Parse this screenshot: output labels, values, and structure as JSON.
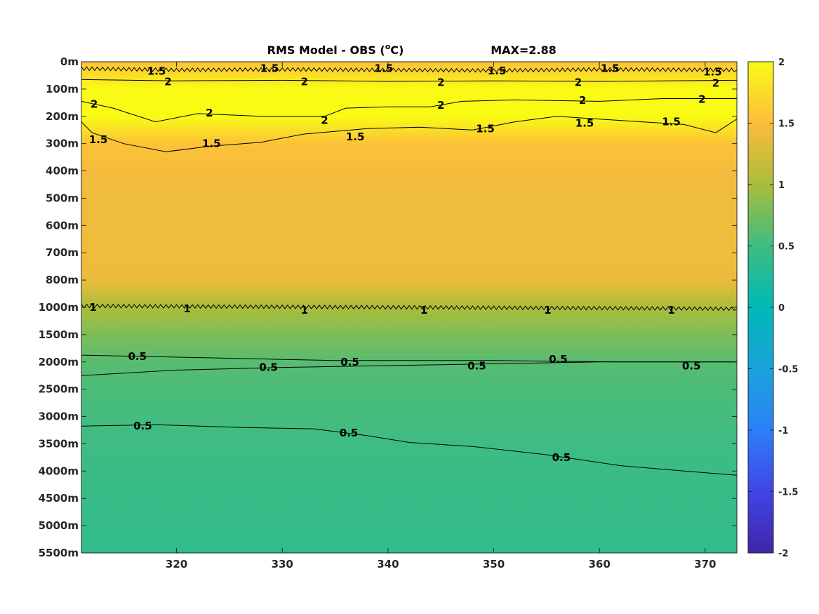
{
  "chart_data": {
    "type": "heatmap",
    "title": "RMS Model - OBS (",
    "title_sup": "o",
    "title_unit": "C)",
    "annotation": "MAX=2.88",
    "xlim": [
      311,
      373
    ],
    "xticks": [
      320,
      330,
      340,
      350,
      360,
      370
    ],
    "ytick_labels": [
      "0m",
      "100m",
      "200m",
      "300m",
      "400m",
      "500m",
      "600m",
      "700m",
      "800m",
      "1000m",
      "1500m",
      "2000m",
      "2500m",
      "3000m",
      "3500m",
      "4000m",
      "4500m",
      "5000m",
      "5500m"
    ],
    "colorbar": {
      "clim": [
        -2,
        2
      ],
      "ticks": [
        "2",
        "1.5",
        "1",
        "0.5",
        "0",
        "-0.5",
        "-1",
        "-1.5",
        "-2"
      ],
      "colormap": "parula"
    },
    "depth_rms_profile": [
      1.55,
      2.05,
      2.0,
      1.55,
      1.45,
      1.42,
      1.42,
      1.42,
      1.4,
      1.0,
      0.8,
      0.62,
      0.56,
      0.53,
      0.5,
      0.47,
      0.45,
      0.42,
      0.4
    ],
    "contour_levels": [
      0.5,
      1,
      1.5,
      2
    ],
    "contour_labels": [
      {
        "text": "1.5",
        "x": 318.1,
        "y": 0.35
      },
      {
        "text": "1.5",
        "x": 328.8,
        "y": 0.25
      },
      {
        "text": "1.5",
        "x": 339.6,
        "y": 0.25
      },
      {
        "text": "1.5",
        "x": 350.3,
        "y": 0.33
      },
      {
        "text": "1.5",
        "x": 361.0,
        "y": 0.25
      },
      {
        "text": "1.5",
        "x": 370.7,
        "y": 0.37
      },
      {
        "text": "2",
        "x": 319.2,
        "y": 0.73
      },
      {
        "text": "2",
        "x": 332.1,
        "y": 0.73
      },
      {
        "text": "2",
        "x": 345.0,
        "y": 0.76
      },
      {
        "text": "2",
        "x": 358.0,
        "y": 0.76
      },
      {
        "text": "2",
        "x": 371.0,
        "y": 0.78
      },
      {
        "text": "2",
        "x": 312.2,
        "y": 1.55
      },
      {
        "text": "2",
        "x": 323.1,
        "y": 1.88
      },
      {
        "text": "2",
        "x": 345.0,
        "y": 1.6
      },
      {
        "text": "2",
        "x": 358.4,
        "y": 1.42
      },
      {
        "text": "2",
        "x": 369.7,
        "y": 1.38
      },
      {
        "text": "2",
        "x": 334.0,
        "y": 2.15
      },
      {
        "text": "1.5",
        "x": 312.6,
        "y": 2.85
      },
      {
        "text": "1.5",
        "x": 323.3,
        "y": 3.0
      },
      {
        "text": "1.5",
        "x": 336.9,
        "y": 2.75
      },
      {
        "text": "1.5",
        "x": 349.2,
        "y": 2.45
      },
      {
        "text": "1.5",
        "x": 358.6,
        "y": 2.25
      },
      {
        "text": "1.5",
        "x": 366.8,
        "y": 2.2
      },
      {
        "text": "1",
        "x": 312.1,
        "y": 9.0
      },
      {
        "text": "1",
        "x": 321.0,
        "y": 9.05
      },
      {
        "text": "1",
        "x": 332.1,
        "y": 9.1
      },
      {
        "text": "1",
        "x": 343.4,
        "y": 9.1
      },
      {
        "text": "1",
        "x": 355.1,
        "y": 9.1
      },
      {
        "text": "1",
        "x": 366.8,
        "y": 9.1
      },
      {
        "text": "0.5",
        "x": 316.3,
        "y": 10.8
      },
      {
        "text": "0.5",
        "x": 328.7,
        "y": 11.2
      },
      {
        "text": "0.5",
        "x": 336.4,
        "y": 11.0
      },
      {
        "text": "0.5",
        "x": 348.4,
        "y": 11.15
      },
      {
        "text": "0.5",
        "x": 356.1,
        "y": 10.9
      },
      {
        "text": "0.5",
        "x": 368.7,
        "y": 11.15
      },
      {
        "text": "0.5",
        "x": 316.8,
        "y": 13.35
      },
      {
        "text": "0.5",
        "x": 336.3,
        "y": 13.6
      },
      {
        "text": "0.5",
        "x": 356.4,
        "y": 14.5
      }
    ],
    "contour_lines": [
      {
        "level": 1.5,
        "points": [
          [
            311,
            0.25
          ],
          [
            320,
            0.3
          ],
          [
            330,
            0.28
          ],
          [
            340,
            0.3
          ],
          [
            350,
            0.32
          ],
          [
            360,
            0.28
          ],
          [
            373,
            0.3
          ]
        ],
        "wiggle": true
      },
      {
        "level": 2,
        "points": [
          [
            311,
            0.65
          ],
          [
            320,
            0.7
          ],
          [
            330,
            0.68
          ],
          [
            340,
            0.72
          ],
          [
            350,
            0.7
          ],
          [
            360,
            0.72
          ],
          [
            373,
            0.68
          ]
        ],
        "wiggle": false
      },
      {
        "level": 2,
        "points": [
          [
            311,
            1.45
          ],
          [
            314,
            1.7
          ],
          [
            318,
            2.2
          ],
          [
            322,
            1.9
          ],
          [
            328,
            2.0
          ],
          [
            334,
            2.0
          ],
          [
            336,
            1.7
          ],
          [
            340,
            1.65
          ],
          [
            344,
            1.65
          ],
          [
            347,
            1.45
          ],
          [
            352,
            1.4
          ],
          [
            360,
            1.45
          ],
          [
            366,
            1.35
          ],
          [
            373,
            1.35
          ]
        ],
        "wiggle": false
      },
      {
        "level": 1.5,
        "points": [
          [
            311,
            2.2
          ],
          [
            312,
            2.6
          ],
          [
            315,
            3.0
          ],
          [
            319,
            3.3
          ],
          [
            323,
            3.1
          ],
          [
            328,
            2.95
          ],
          [
            332,
            2.65
          ],
          [
            338,
            2.45
          ],
          [
            343,
            2.4
          ],
          [
            348,
            2.5
          ],
          [
            352,
            2.2
          ],
          [
            356,
            2.0
          ],
          [
            360,
            2.1
          ],
          [
            364,
            2.2
          ],
          [
            368,
            2.3
          ],
          [
            371,
            2.6
          ],
          [
            373,
            2.1
          ]
        ],
        "wiggle": false
      },
      {
        "level": 1,
        "points": [
          [
            311,
            8.95
          ],
          [
            373,
            9.05
          ]
        ],
        "wiggle": true
      },
      {
        "level": 0.5,
        "points": [
          [
            311,
            10.75
          ],
          [
            323,
            10.85
          ],
          [
            335,
            10.95
          ],
          [
            350,
            10.95
          ],
          [
            362,
            11.0
          ],
          [
            373,
            11.0
          ]
        ],
        "wiggle": false
      },
      {
        "level": 0.5,
        "points": [
          [
            311,
            11.5
          ],
          [
            320,
            11.3
          ],
          [
            330,
            11.2
          ],
          [
            345,
            11.1
          ],
          [
            360,
            11.0
          ],
          [
            373,
            11.0
          ]
        ],
        "wiggle": false
      },
      {
        "level": 0.5,
        "points": [
          [
            311,
            13.35
          ],
          [
            318,
            13.3
          ],
          [
            326,
            13.4
          ],
          [
            333,
            13.45
          ],
          [
            338,
            13.7
          ],
          [
            342,
            13.95
          ],
          [
            348,
            14.1
          ],
          [
            355,
            14.4
          ],
          [
            362,
            14.8
          ],
          [
            368,
            15.0
          ],
          [
            373,
            15.15
          ]
        ],
        "wiggle": false
      }
    ]
  }
}
